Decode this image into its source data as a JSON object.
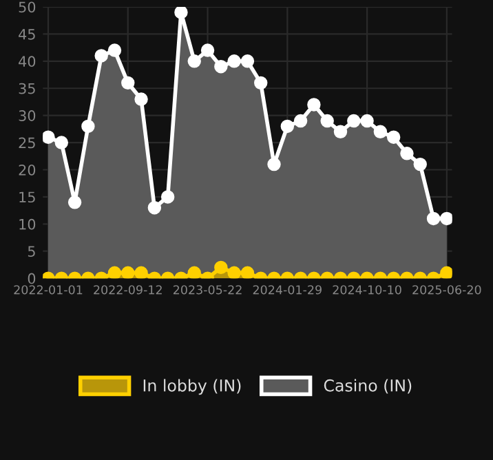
{
  "chart_data": {
    "type": "area",
    "categories": [
      "2022-01-01",
      null,
      null,
      null,
      null,
      null,
      "2022-09-12",
      null,
      null,
      null,
      null,
      null,
      "2023-05-22",
      null,
      null,
      null,
      null,
      null,
      "2024-01-29",
      null,
      null,
      null,
      null,
      null,
      "2024-10-10",
      null,
      null,
      null,
      null,
      null,
      "2025-06-20"
    ],
    "series": [
      {
        "name": "In lobby (IN)",
        "color": "#ffd000",
        "values": [
          0,
          0,
          0,
          0,
          0,
          1,
          1,
          1,
          0,
          0,
          0,
          1,
          0,
          2,
          1,
          1,
          0,
          0,
          0,
          0,
          0,
          0,
          0,
          0,
          0,
          0,
          0,
          0,
          0,
          0,
          1
        ]
      },
      {
        "name": "Casino (IN)",
        "color": "#ffffff",
        "values": [
          26,
          25,
          14,
          28,
          41,
          42,
          36,
          33,
          13,
          15,
          49,
          40,
          42,
          39,
          40,
          40,
          36,
          21,
          28,
          29,
          32,
          29,
          27,
          29,
          29,
          27,
          26,
          23,
          21,
          11,
          11
        ]
      }
    ],
    "ylim": [
      0,
      50
    ],
    "yticks": [
      0,
      5,
      10,
      15,
      20,
      25,
      30,
      35,
      40,
      45,
      50
    ],
    "grid": true,
    "legend": "bottom",
    "marker": "circle"
  }
}
